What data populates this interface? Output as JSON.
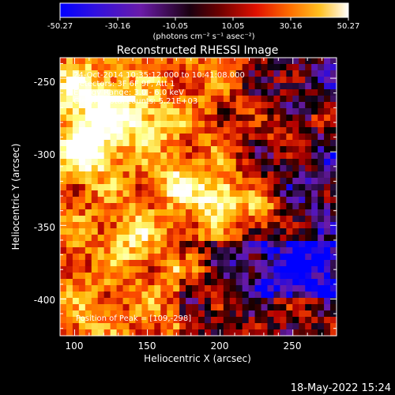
{
  "colorbar": {
    "ticks": [
      "-50.27",
      "-30.16",
      "-10.05",
      "10.05",
      "30.16",
      "50.27"
    ],
    "units": "(photons cm⁻² s⁻¹ asec⁻²)"
  },
  "chart_data": {
    "type": "heatmap",
    "title": "Reconstructed RHESSI Image",
    "xlabel": "Heliocentric X (arcsec)",
    "ylabel": "Heliocentric Y (arcsec)",
    "xlim": [
      90,
      280
    ],
    "ylim": [
      -425,
      -236
    ],
    "x_ticks": [
      "100",
      "150",
      "200",
      "250"
    ],
    "y_ticks": [
      "-250",
      "-300",
      "-350",
      "-400"
    ],
    "value_range": [
      -50.27,
      50.27
    ],
    "colormap": [
      "#0000ff",
      "#6a1ba8",
      "#000000",
      "#b40000",
      "#ff5000",
      "#ffb000",
      "#ffff80",
      "#ffffff"
    ],
    "annotations": [
      "24-Oct-2014 10:35:12.000 to 10:41:08.000",
      "Detectors: 3F 6F 9F, Att 1",
      "Energy Range: 3.0 - 6.0 keV",
      "Clean    Total counts: 5.21E+03"
    ],
    "peak_label": "Position of Peak = [109,-298]",
    "peak": [
      109,
      -298
    ]
  },
  "footer": {
    "timestamp": "18-May-2022 15:24"
  }
}
